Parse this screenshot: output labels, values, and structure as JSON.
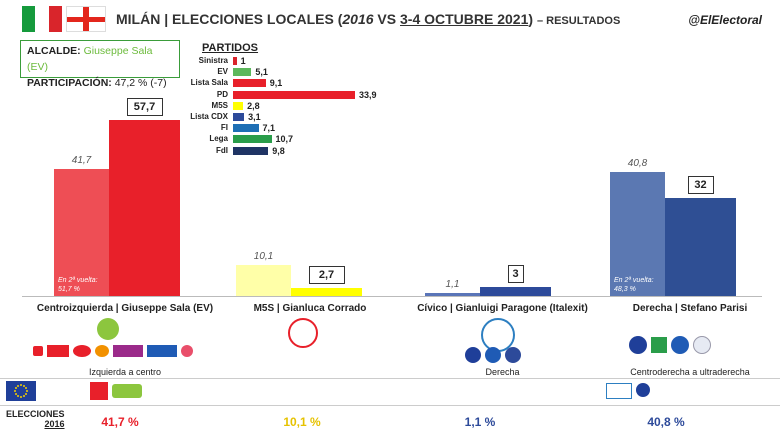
{
  "header": {
    "title_main": "MILÁN | ELECCIONES LOCALES (",
    "title_year": "2016",
    "title_vs": " VS ",
    "title_date": "3-4 OCTUBRE 2021",
    "title_close": ") ",
    "title_tail": "– RESULTADOS",
    "handle": "@ElElectoral"
  },
  "infobox": {
    "alcalde_label": "ALCALDE:",
    "alcalde_value": "Giuseppe Sala (EV)",
    "participacion_label": "PARTICIPACIÓN:",
    "participacion_value": "47,2 % (-7)"
  },
  "partidos_title": "PARTIDOS",
  "colors": {
    "centroizquierda_2021": "#e8202a",
    "centroizquierda_2016": "#ee4e55",
    "m5s_2021": "#ffff00",
    "m5s_2016": "#ffffa8",
    "civico_2021": "#2d4a9a",
    "civico_2016": "#5a75b8",
    "derecha_2021": "#2f4f94",
    "derecha_2016": "#5b78b2"
  },
  "chart_data": [
    {
      "type": "bar",
      "title": "PARTIDOS",
      "orientation": "horizontal",
      "categories": [
        "Sinistra",
        "EV",
        "Lista Sala",
        "PD",
        "M5S",
        "Lista CDX",
        "FI",
        "Lega",
        "FdI"
      ],
      "values": [
        1,
        5.1,
        9.1,
        33.9,
        2.8,
        3.1,
        7.1,
        10.7,
        9.8
      ],
      "value_labels": [
        "1",
        "5,1",
        "9,1",
        "33,9",
        "2,8",
        "3,1",
        "7,1",
        "10,7",
        "9,8"
      ],
      "colors": [
        "#d9242b",
        "#5cb85c",
        "#e8202a",
        "#e8202a",
        "#ffff00",
        "#2d4a9a",
        "#1e6fb5",
        "#2a9d4a",
        "#1f3464"
      ]
    },
    {
      "type": "bar",
      "categories": [
        "Centroizquierda | Giuseppe Sala (EV)",
        "M5S | Gianluca Corrado",
        "Cívico | Gianluigi Paragone (Italexit)",
        "Derecha | Stefano Parisi"
      ],
      "series": [
        {
          "name": "2016",
          "values": [
            41.7,
            10.1,
            1.1,
            40.8
          ],
          "labels": [
            "41,7",
            "10,1",
            "1,1",
            "40,8"
          ]
        },
        {
          "name": "2021",
          "values": [
            57.7,
            2.7,
            3,
            32
          ],
          "labels": [
            "57,7",
            "2,7",
            "3",
            "32"
          ]
        }
      ],
      "annotations": [
        {
          "category": "Centroizquierda | Giuseppe Sala (EV)",
          "line1": "En 2ª vuelta:",
          "line2": "51,7 %"
        },
        {
          "category": "Derecha | Stefano Parisi",
          "line1": "En 2ª vuelta:",
          "line2": "48,3 %"
        }
      ],
      "blocs": [
        "Izquierda a centro",
        "",
        "Derecha",
        "Centroderecha a ultraderecha"
      ],
      "ylim": [
        0,
        60
      ]
    }
  ],
  "elecciones_2016": {
    "label": "ELECCIONES",
    "year": "2016",
    "values": [
      "41,7 %",
      "10,1 %",
      "1,1 %",
      "40,8 %"
    ],
    "colors": [
      "#e8202a",
      "#e6c200",
      "#2d4a9a",
      "#2d4a9a"
    ]
  },
  "icons": {
    "flag_italy": "italy-flag-icon",
    "flag_milan": "milan-flag-icon",
    "eu_flag": "eu-flag-icon"
  }
}
